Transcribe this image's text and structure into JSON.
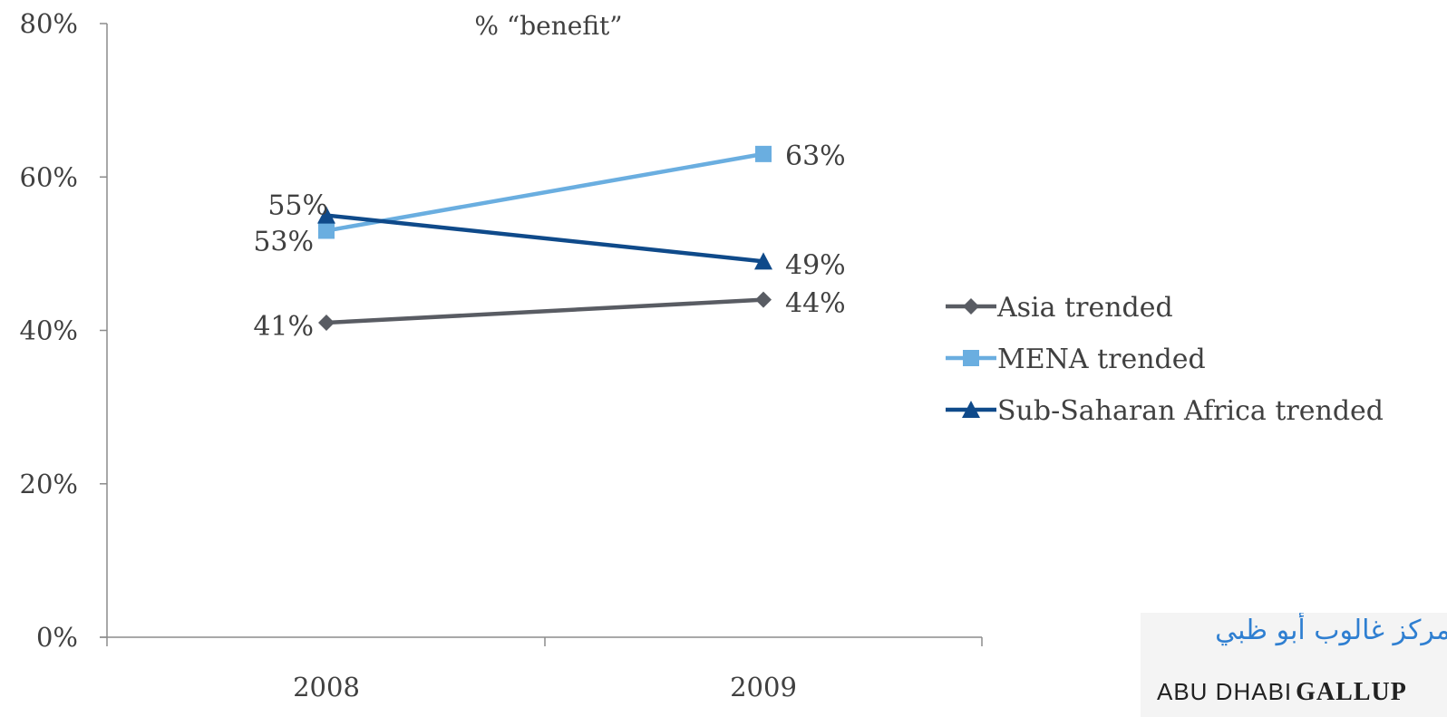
{
  "chart_data": {
    "type": "line",
    "title": "% “benefit”",
    "categories": [
      "2008",
      "2009"
    ],
    "ylim": [
      0,
      80
    ],
    "yticks": [
      0,
      20,
      40,
      60,
      80
    ],
    "ytick_labels": [
      "0%",
      "20%",
      "40%",
      "60%",
      "80%"
    ],
    "grid": false,
    "legend_position": "right",
    "series": [
      {
        "name": "Asia trended",
        "values": [
          41,
          44
        ],
        "labels": [
          "41%",
          "44%"
        ],
        "color": "#595c63",
        "marker": "diamond"
      },
      {
        "name": "MENA trended",
        "values": [
          53,
          63
        ],
        "labels": [
          "53%",
          "63%"
        ],
        "color": "#6aaee0",
        "marker": "square"
      },
      {
        "name": "Sub-Saharan Africa trended",
        "values": [
          55,
          49
        ],
        "labels": [
          "55%",
          "49%"
        ],
        "color": "#0f4a8a",
        "marker": "triangle"
      }
    ]
  },
  "logo": {
    "arabic_text": "مركز غالوب أبو ظبي",
    "latin_text_part1": "ABU DHABI",
    "latin_text_part2": "GALLUP"
  }
}
